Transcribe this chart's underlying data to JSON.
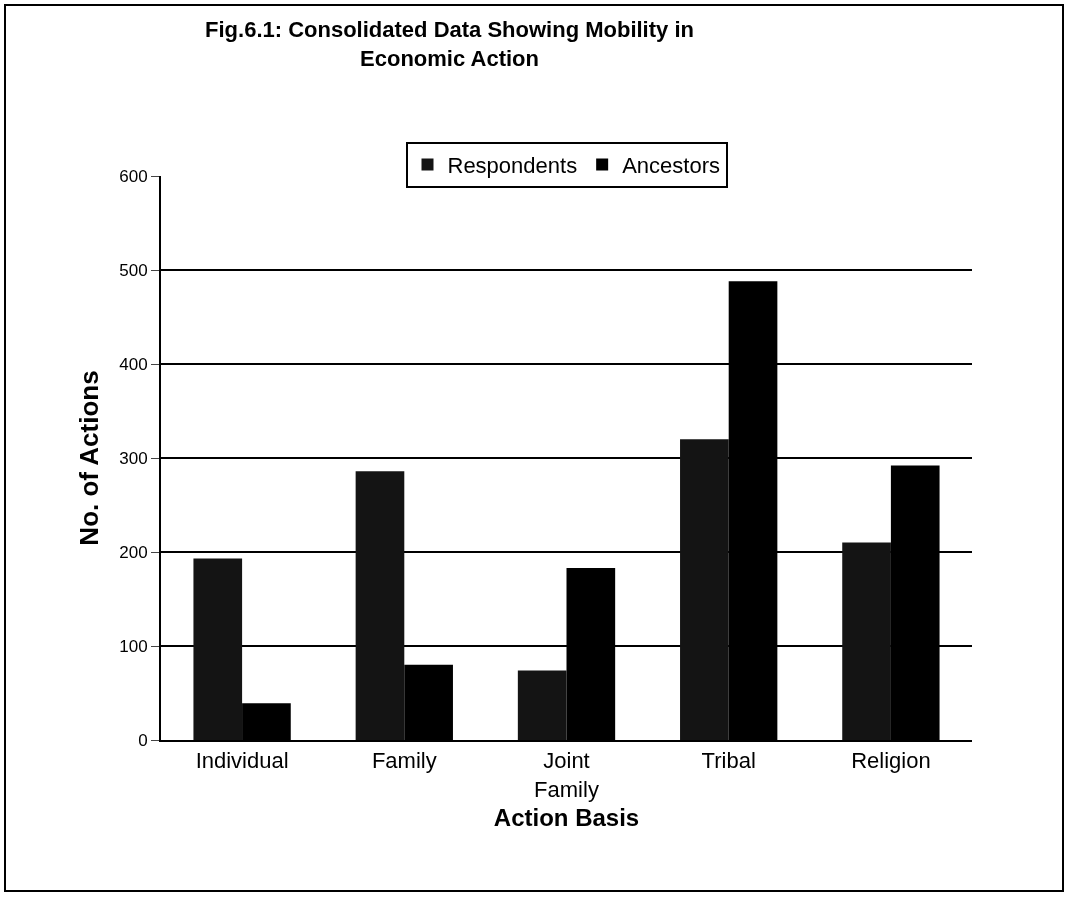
{
  "chart_data": {
    "type": "bar",
    "title": "Fig.6.1: Consolidated Data Showing Mobility in Economic Action",
    "xlabel": "Action Basis",
    "ylabel": "No. of Actions",
    "categories": [
      "Individual",
      "Family",
      "Joint Family",
      "Tribal",
      "Religion"
    ],
    "series": [
      {
        "name": "Respondents",
        "color": "#141414",
        "values": [
          193,
          286,
          74,
          320,
          210
        ]
      },
      {
        "name": "Ancestors",
        "color": "#000000",
        "values": [
          39,
          80,
          183,
          488,
          292
        ]
      }
    ],
    "ylim": [
      0,
      600
    ],
    "yticks": [
      0,
      100,
      200,
      300,
      400,
      500,
      600
    ],
    "grid": "y",
    "legend": "top"
  }
}
